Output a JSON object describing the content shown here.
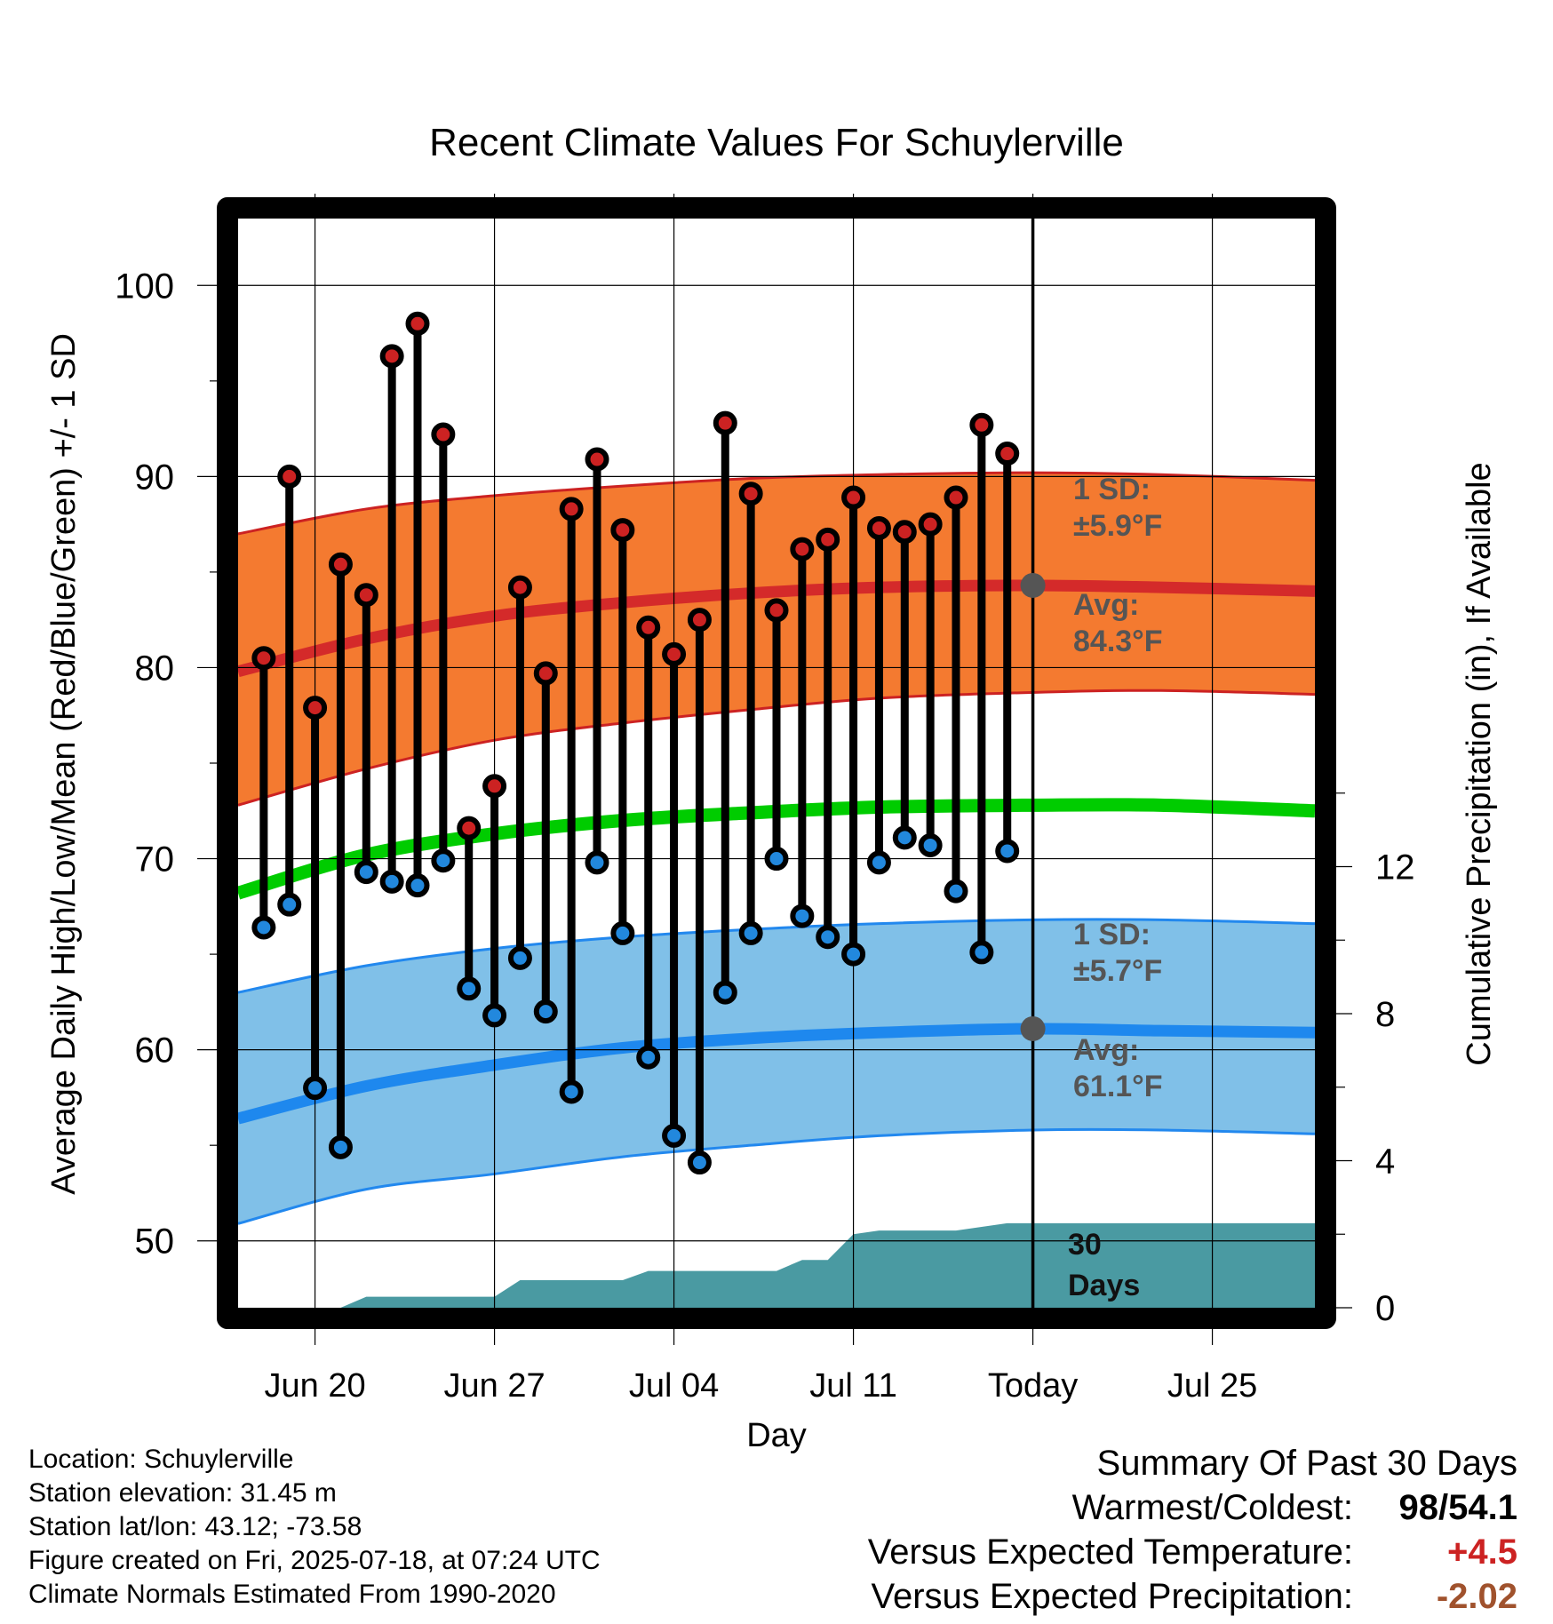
{
  "chart_data": {
    "type": "line",
    "title": "Recent Climate Values For Schuylerville",
    "xlabel": "Day",
    "ylabel": "Average Daily High/Low/Mean (Red/Blue/Green) +/- 1 SD",
    "y2label": "Cumulative Precipitation (in), If Available",
    "x_range": [
      "2025-06-17",
      "2025-07-29"
    ],
    "ylim": [
      46.5,
      103.5
    ],
    "y2lim": [
      0,
      24
    ],
    "x_ticks": [
      {
        "date": "2025-06-20",
        "label": "Jun 20"
      },
      {
        "date": "2025-06-27",
        "label": "Jun 27"
      },
      {
        "date": "2025-07-04",
        "label": "Jul 04"
      },
      {
        "date": "2025-07-11",
        "label": "Jul 11"
      },
      {
        "date": "2025-07-18",
        "label": "Today"
      },
      {
        "date": "2025-07-25",
        "label": "Jul 25"
      }
    ],
    "y_ticks": [
      50,
      60,
      70,
      80,
      90,
      100
    ],
    "y2_ticks": [
      0,
      4,
      8,
      12
    ],
    "grid": true,
    "today": "2025-07-18",
    "observed": {
      "dates": [
        "2025-06-18",
        "2025-06-19",
        "2025-06-20",
        "2025-06-21",
        "2025-06-22",
        "2025-06-23",
        "2025-06-24",
        "2025-06-25",
        "2025-06-26",
        "2025-06-27",
        "2025-06-28",
        "2025-06-29",
        "2025-06-30",
        "2025-07-01",
        "2025-07-02",
        "2025-07-03",
        "2025-07-04",
        "2025-07-05",
        "2025-07-06",
        "2025-07-07",
        "2025-07-08",
        "2025-07-09",
        "2025-07-10",
        "2025-07-11",
        "2025-07-12",
        "2025-07-13",
        "2025-07-14",
        "2025-07-15",
        "2025-07-16",
        "2025-07-17"
      ],
      "highs": [
        80.5,
        90.0,
        77.9,
        85.4,
        83.8,
        96.3,
        98.0,
        92.2,
        71.6,
        73.8,
        84.2,
        79.7,
        88.3,
        90.9,
        87.2,
        82.1,
        80.7,
        82.5,
        92.8,
        89.1,
        83.0,
        86.2,
        86.7,
        88.9,
        87.3,
        87.1,
        87.5,
        88.9,
        92.7,
        91.2
      ],
      "lows": [
        66.4,
        67.6,
        58.0,
        54.9,
        69.3,
        68.8,
        68.6,
        69.9,
        63.2,
        61.8,
        64.8,
        62.0,
        57.8,
        69.8,
        66.1,
        59.6,
        55.5,
        54.1,
        63.0,
        66.1,
        70.0,
        67.0,
        65.9,
        65.0,
        69.8,
        71.1,
        70.7,
        68.3,
        65.1,
        70.4
      ]
    },
    "normals": {
      "dates": [
        "2025-06-17",
        "2025-06-22",
        "2025-06-27",
        "2025-07-02",
        "2025-07-07",
        "2025-07-12",
        "2025-07-18",
        "2025-07-23",
        "2025-07-29"
      ],
      "high_avg": [
        79.8,
        81.5,
        82.7,
        83.4,
        83.9,
        84.2,
        84.3,
        84.2,
        84.0
      ],
      "high_sd_upper": [
        87.0,
        88.3,
        89.0,
        89.5,
        89.9,
        90.1,
        90.2,
        90.1,
        89.8
      ],
      "high_sd_lower": [
        72.8,
        74.7,
        76.2,
        77.1,
        77.8,
        78.4,
        78.7,
        78.8,
        78.6
      ],
      "mean_avg": [
        68.2,
        70.2,
        71.3,
        72.0,
        72.4,
        72.7,
        72.8,
        72.8,
        72.5
      ],
      "low_avg": [
        56.4,
        58.1,
        59.2,
        60.1,
        60.6,
        60.9,
        61.1,
        61.0,
        60.9
      ],
      "low_sd_upper": [
        63.0,
        64.4,
        65.3,
        65.9,
        66.3,
        66.6,
        66.8,
        66.8,
        66.6
      ],
      "low_sd_lower": [
        50.9,
        52.7,
        53.5,
        54.4,
        55.0,
        55.5,
        55.8,
        55.8,
        55.6
      ]
    },
    "precip_cumulative": {
      "dates": [
        "2025-06-17",
        "2025-06-19",
        "2025-06-21",
        "2025-06-22",
        "2025-06-27",
        "2025-06-28",
        "2025-07-02",
        "2025-07-03",
        "2025-07-08",
        "2025-07-09",
        "2025-07-10",
        "2025-07-11",
        "2025-07-12",
        "2025-07-15",
        "2025-07-16",
        "2025-07-17",
        "2025-07-29"
      ],
      "values": [
        0,
        0,
        0,
        0.3,
        0.3,
        0.75,
        0.75,
        1.0,
        1.0,
        1.3,
        1.3,
        2.0,
        2.1,
        2.1,
        2.2,
        2.3,
        2.3
      ]
    }
  },
  "labels": {
    "high_sd_line1": "1 SD:",
    "high_sd_line2": "±5.9°F",
    "high_avg_line1": "Avg:",
    "high_avg_line2": "84.3°F",
    "low_sd_line1": "1 SD:",
    "low_sd_line2": "±5.7°F",
    "low_avg_line1": "Avg:",
    "low_avg_line2": "61.1°F",
    "precip_line1": "30",
    "precip_line2": "Days"
  },
  "metadata": {
    "location": "Location: Schuylerville",
    "elevation": "Station elevation: 31.45 m",
    "latlon": "Station lat/lon: 43.12; -73.58",
    "created": "Figure created on Fri, 2025-07-18, at 07:24 UTC",
    "normals": "Climate Normals Estimated From 1990-2020"
  },
  "summary": {
    "title": "Summary Of Past 30 Days",
    "warmest_coldest_label": "Warmest/Coldest:",
    "warmest": "98",
    "sep": "/",
    "coldest": "54.1",
    "temp_label": "Versus Expected Temperature:",
    "temp_value": "+4.5",
    "precip_label": "Versus Expected Precipitation:",
    "precip_value": "-2.02"
  },
  "colors": {
    "high_dot": "#cc2222",
    "low_dot": "#2288dd",
    "high_band": "#f47a30",
    "high_band_edge": "#cc2222",
    "high_avg_line": "#d42a2a",
    "low_band": "#80c0e8",
    "low_band_edge": "#2288ee",
    "low_avg_line": "#1e88ee",
    "mean_line": "#00cc00",
    "precip_fill": "#4a9aa2",
    "annotation_text": "#555555",
    "positive_value": "#cc2222",
    "precip_value": "#a0522d"
  }
}
